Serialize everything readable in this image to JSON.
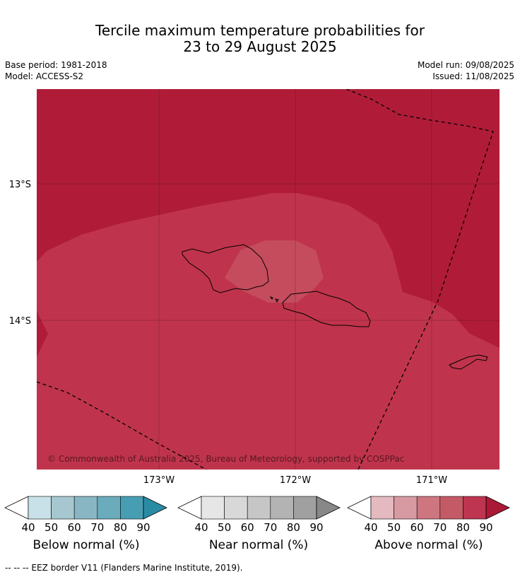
{
  "header": {
    "title_line1": "Tercile maximum temperature probabilities for",
    "title_line2": "23 to 29 August 2025",
    "base_period": "Base period: 1981-2018",
    "model": "Model: ACCESS-S2",
    "model_run": "Model run: 09/08/2025",
    "issued": "Issued: 11/08/2025"
  },
  "map": {
    "lat_labels": [
      "13°S",
      "14°S"
    ],
    "lon_labels": [
      "173°W",
      "172°W",
      "171°W"
    ],
    "copyright": "© Commonwealth of Australia 2025, Bureau of Meteorology, supported by COSPPac",
    "colors": {
      "above_90": "#b01c38",
      "above_80": "#bf344c",
      "above_70": "#c44c5d"
    }
  },
  "colorbars": [
    {
      "label": "Below normal (%)",
      "ticks": [
        "40",
        "50",
        "60",
        "70",
        "80",
        "90"
      ],
      "colors": [
        "#ffffff",
        "#c8e1e8",
        "#a6c7cf",
        "#89b6c3",
        "#6aabbc",
        "#479eb2",
        "#2a8ca4"
      ]
    },
    {
      "label": "Near normal (%)",
      "ticks": [
        "40",
        "50",
        "60",
        "70",
        "80",
        "90"
      ],
      "colors": [
        "#ffffff",
        "#e6e6e6",
        "#d8d8d8",
        "#c6c6c6",
        "#b3b3b3",
        "#a0a0a0",
        "#888888"
      ]
    },
    {
      "label": "Above normal (%)",
      "ticks": [
        "40",
        "50",
        "60",
        "70",
        "80",
        "90"
      ],
      "colors": [
        "#ffffff",
        "#e4b9c0",
        "#d79aa2",
        "#cd7680",
        "#c45a66",
        "#bd3550",
        "#aa1a36"
      ]
    }
  ],
  "footnote": "--  --  -- EEZ border V11 (Flanders Marine Institute, 2019)."
}
